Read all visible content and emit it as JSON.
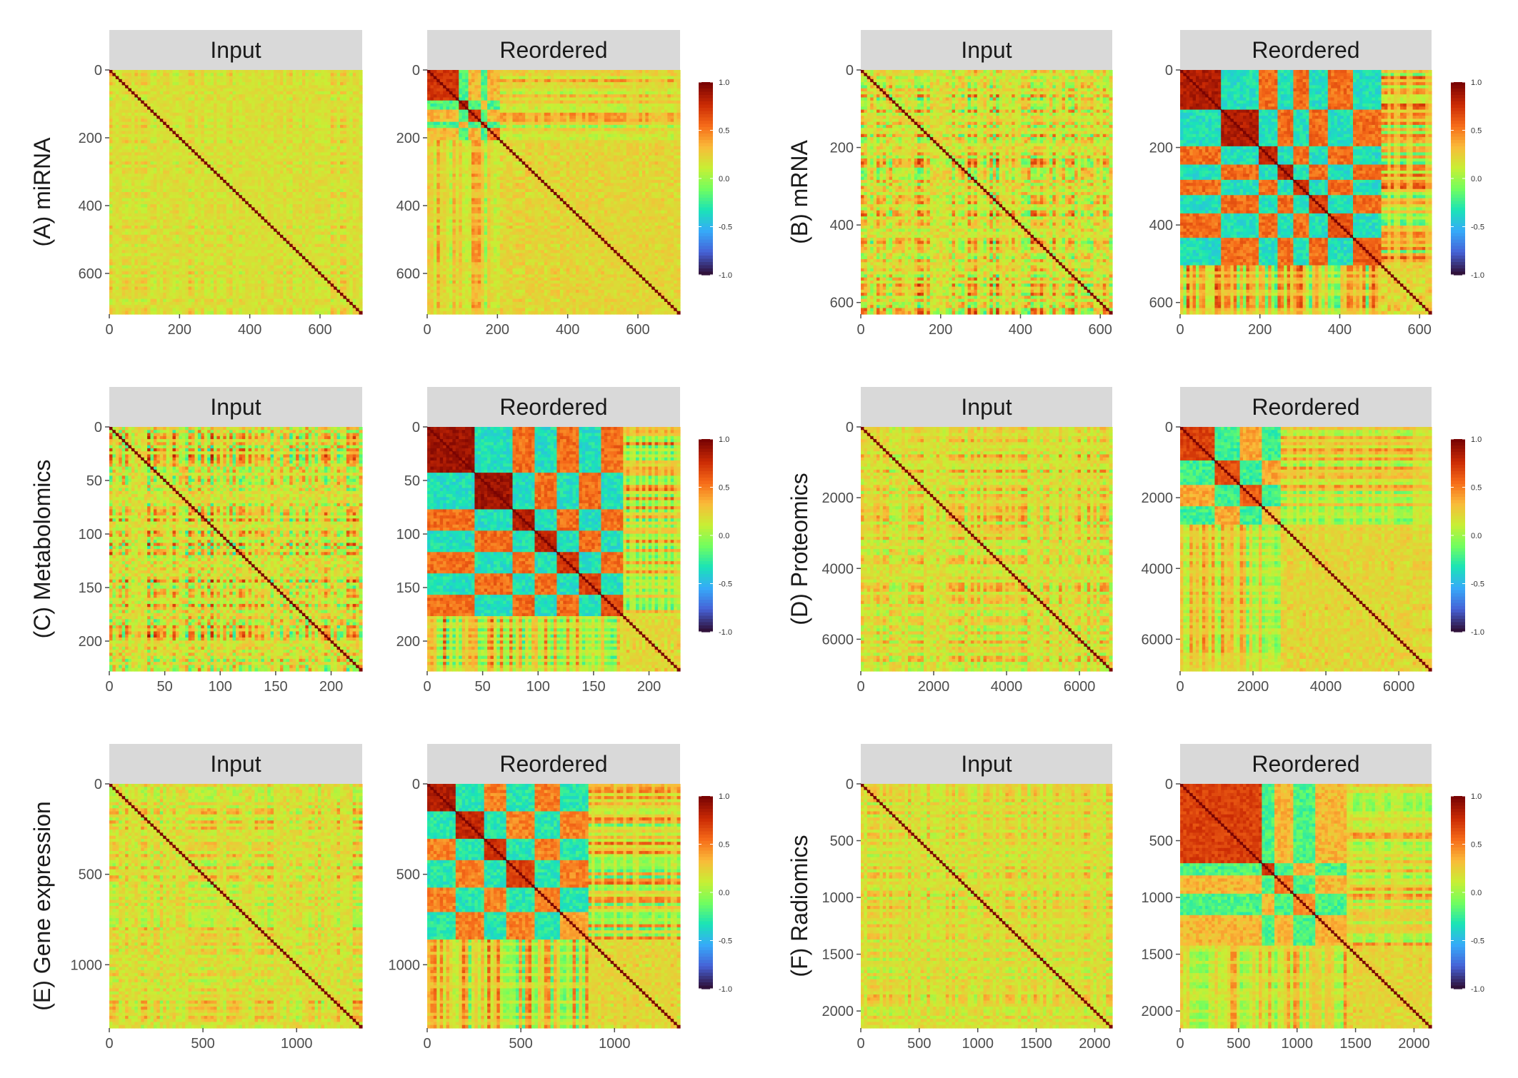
{
  "chart_data": [
    {
      "type": "heatmap",
      "row_label": "(A) miRNA",
      "n": 720,
      "panels": [
        {
          "title": "Input",
          "structure": "random",
          "density": 0.35,
          "blocks": []
        },
        {
          "title": "Reordered",
          "structure": "blocks",
          "density": 0.6,
          "blocks": [
            {
              "start": 0,
              "end": 90,
              "value": 0.75
            },
            {
              "start": 90,
              "end": 110,
              "value": 0.85
            },
            {
              "start": 110,
              "end": 150,
              "value": 0.7
            },
            {
              "start": 150,
              "end": 170,
              "value": 0.6
            },
            {
              "start": 170,
              "end": 200,
              "value": 0.5
            }
          ]
        }
      ],
      "x_ticks": [
        0,
        200,
        400,
        600
      ],
      "y_ticks": [
        0,
        200,
        400,
        600
      ],
      "colorbar": {
        "min": -1.0,
        "max": 1.0,
        "ticks": [
          1.0,
          0.5,
          0.0,
          -0.5,
          -1.0
        ],
        "tick_labels": [
          "1.0",
          "0.5",
          "0.0",
          "-0.5",
          "-1.0"
        ]
      }
    },
    {
      "type": "heatmap",
      "row_label": "(B) mRNA",
      "n": 630,
      "panels": [
        {
          "title": "Input",
          "structure": "random",
          "density": 0.9,
          "blocks": []
        },
        {
          "title": "Reordered",
          "structure": "blocks",
          "density": 1.0,
          "blocks": [
            {
              "start": 0,
              "end": 100,
              "value": 0.85
            },
            {
              "start": 100,
              "end": 190,
              "value": 0.85
            },
            {
              "start": 190,
              "end": 240,
              "value": 0.8
            },
            {
              "start": 240,
              "end": 280,
              "value": 0.8
            },
            {
              "start": 280,
              "end": 320,
              "value": 0.75
            },
            {
              "start": 320,
              "end": 370,
              "value": 0.7
            },
            {
              "start": 370,
              "end": 430,
              "value": 0.65
            },
            {
              "start": 430,
              "end": 500,
              "value": 0.6
            }
          ]
        }
      ],
      "x_ticks": [
        0,
        200,
        400,
        600
      ],
      "y_ticks": [
        0,
        200,
        400,
        600
      ],
      "colorbar": {
        "min": -1.0,
        "max": 1.0,
        "ticks": [
          1.0,
          0.5,
          0.0,
          -0.5,
          -1.0
        ],
        "tick_labels": [
          "1.0",
          "0.5",
          "0.0",
          "-0.5",
          "-1.0"
        ]
      }
    },
    {
      "type": "heatmap",
      "row_label": "(C) Metabolomics",
      "n": 228,
      "panels": [
        {
          "title": "Input",
          "structure": "random",
          "density": 1.0,
          "blocks": []
        },
        {
          "title": "Reordered",
          "structure": "blocks",
          "density": 1.0,
          "blocks": [
            {
              "start": 0,
              "end": 40,
              "value": 0.9
            },
            {
              "start": 40,
              "end": 75,
              "value": 0.9
            },
            {
              "start": 75,
              "end": 95,
              "value": 0.85
            },
            {
              "start": 95,
              "end": 115,
              "value": 0.8
            },
            {
              "start": 115,
              "end": 135,
              "value": 0.75
            },
            {
              "start": 135,
              "end": 155,
              "value": 0.7
            },
            {
              "start": 155,
              "end": 175,
              "value": 0.65
            }
          ]
        }
      ],
      "x_ticks": [
        0,
        50,
        100,
        150,
        200
      ],
      "y_ticks": [
        0,
        50,
        100,
        150,
        200
      ],
      "colorbar": {
        "min": -1.0,
        "max": 1.0,
        "ticks": [
          1.0,
          0.5,
          0.0,
          -0.5,
          -1.0
        ],
        "tick_labels": [
          "1.0",
          "0.5",
          "0.0",
          "-0.5",
          "-1.0"
        ]
      }
    },
    {
      "type": "heatmap",
      "row_label": "(D) Proteomics",
      "n": 6900,
      "panels": [
        {
          "title": "Input",
          "structure": "random",
          "density": 0.6,
          "blocks": []
        },
        {
          "title": "Reordered",
          "structure": "blocks",
          "density": 0.7,
          "blocks": [
            {
              "start": 0,
              "end": 900,
              "value": 0.7
            },
            {
              "start": 900,
              "end": 1600,
              "value": 0.65
            },
            {
              "start": 1600,
              "end": 2200,
              "value": 0.6
            },
            {
              "start": 2200,
              "end": 2700,
              "value": 0.3
            }
          ]
        }
      ],
      "x_ticks": [
        0,
        2000,
        4000,
        6000
      ],
      "y_ticks": [
        0,
        2000,
        4000,
        6000
      ],
      "colorbar": {
        "min": -1.0,
        "max": 1.0,
        "ticks": [
          1.0,
          0.5,
          0.0,
          -0.5,
          -1.0
        ],
        "tick_labels": [
          "1.0",
          "0.5",
          "0.0",
          "-0.5",
          "-1.0"
        ]
      }
    },
    {
      "type": "heatmap",
      "row_label": "(E) Gene expression",
      "n": 1350,
      "panels": [
        {
          "title": "Input",
          "structure": "random",
          "density": 0.6,
          "blocks": []
        },
        {
          "title": "Reordered",
          "structure": "blocks",
          "density": 0.9,
          "blocks": [
            {
              "start": 0,
              "end": 150,
              "value": 0.85
            },
            {
              "start": 150,
              "end": 300,
              "value": 0.8
            },
            {
              "start": 300,
              "end": 420,
              "value": 0.75
            },
            {
              "start": 420,
              "end": 560,
              "value": 0.7
            },
            {
              "start": 560,
              "end": 700,
              "value": 0.5
            },
            {
              "start": 700,
              "end": 850,
              "value": 0.4
            }
          ]
        }
      ],
      "x_ticks": [
        0,
        500,
        1000
      ],
      "y_ticks": [
        0,
        500,
        1000
      ],
      "colorbar": {
        "min": -1.0,
        "max": 1.0,
        "ticks": [
          1.0,
          0.5,
          0.0,
          -0.5,
          -1.0
        ],
        "tick_labels": [
          "1.0",
          "0.5",
          "0.0",
          "-0.5",
          "-1.0"
        ]
      }
    },
    {
      "type": "heatmap",
      "row_label": "(F) Radiomics",
      "n": 2150,
      "panels": [
        {
          "title": "Input",
          "structure": "random",
          "density": 0.45,
          "blocks": []
        },
        {
          "title": "Reordered",
          "structure": "blocks",
          "density": 0.6,
          "blocks": [
            {
              "start": 0,
              "end": 680,
              "value": 0.7
            },
            {
              "start": 680,
              "end": 800,
              "value": 0.75
            },
            {
              "start": 800,
              "end": 950,
              "value": 0.5
            },
            {
              "start": 950,
              "end": 1150,
              "value": 0.45
            },
            {
              "start": 1150,
              "end": 1400,
              "value": 0.35
            }
          ]
        }
      ],
      "x_ticks": [
        0,
        500,
        1000,
        1500,
        2000
      ],
      "y_ticks": [
        0,
        500,
        1000,
        1500,
        2000
      ],
      "colorbar": {
        "min": -1.0,
        "max": 1.0,
        "ticks": [
          1.0,
          0.5,
          0.0,
          -0.5,
          -1.0
        ],
        "tick_labels": [
          "1.0",
          "0.5",
          "0.0",
          "-0.5",
          "-1.0"
        ]
      }
    }
  ],
  "colors": {
    "strip_background": "#d9d9d9",
    "tick_color": "#4d4d4d",
    "diagonal": "#7a0403",
    "palette": [
      "#30123b",
      "#4662d7",
      "#36aaf9",
      "#1ae4b6",
      "#72fe5e",
      "#c8ef34",
      "#faba39",
      "#f66b19",
      "#ca2a04",
      "#7a0403"
    ]
  }
}
